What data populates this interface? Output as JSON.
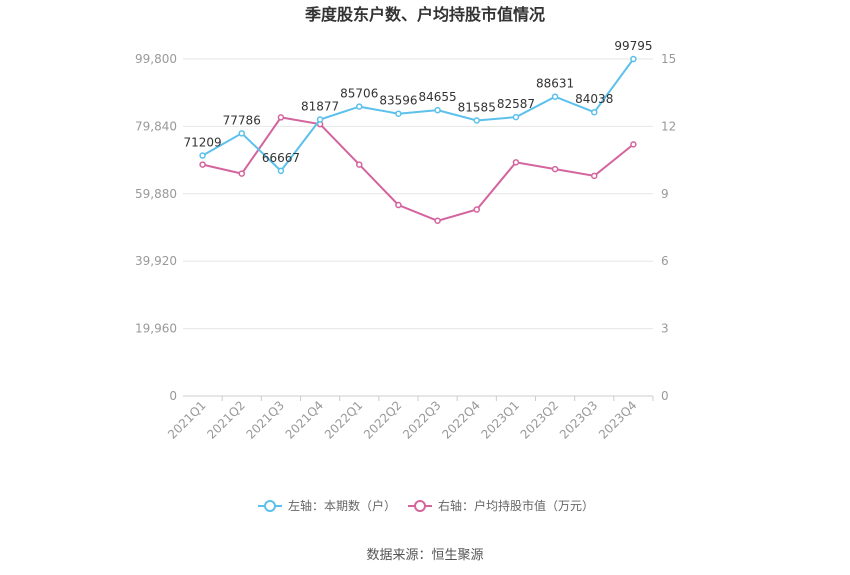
{
  "chart_data": {
    "type": "line",
    "title": "季度股东户数、户均持股市值情况",
    "categories": [
      "2021Q1",
      "2021Q2",
      "2021Q3",
      "2021Q4",
      "2022Q1",
      "2022Q2",
      "2022Q3",
      "2022Q4",
      "2023Q1",
      "2023Q2",
      "2023Q3",
      "2023Q4"
    ],
    "series": [
      {
        "name": "左轴：本期数（户）",
        "axis": "left",
        "color": "#5bc0eb",
        "values": [
          71209,
          77786,
          66667,
          81877,
          85706,
          83596,
          84655,
          81585,
          82587,
          88631,
          84038,
          99795
        ],
        "labels": [
          "71209",
          "77786",
          "66667",
          "81877",
          "85706",
          "83596",
          "84655",
          "81585",
          "82587",
          "88631",
          "84038",
          "99795"
        ]
      },
      {
        "name": "右轴：户均持股市值（万元）",
        "axis": "right",
        "color": "#d4649e",
        "values": [
          10.3,
          9.9,
          12.4,
          12.1,
          10.3,
          8.5,
          7.8,
          8.3,
          10.4,
          10.1,
          9.8,
          11.2
        ]
      }
    ],
    "left_axis": {
      "min": 0,
      "max": 99800,
      "ticks": [
        "0",
        "19,960",
        "39,920",
        "59,880",
        "79,840",
        "99,800"
      ]
    },
    "right_axis": {
      "min": 0,
      "max": 15,
      "ticks": [
        "0",
        "3",
        "6",
        "9",
        "12",
        "15"
      ]
    },
    "grid": true,
    "legend_position": "bottom",
    "source": "数据来源：恒生聚源"
  }
}
